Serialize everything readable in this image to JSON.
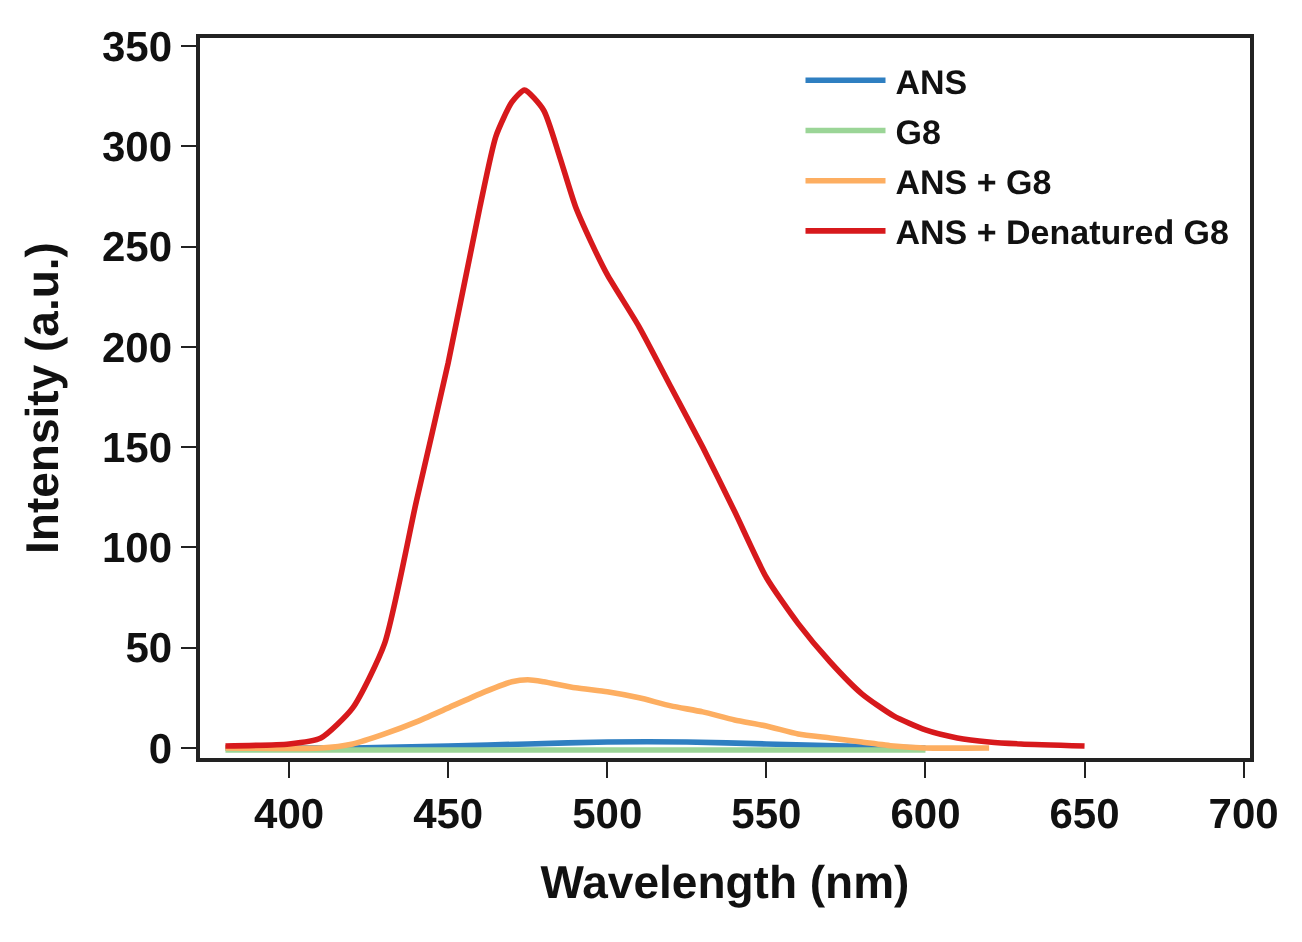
{
  "chart_data": {
    "type": "line",
    "xlabel": "Wavelength (nm)",
    "ylabel": "Intensity (a.u.)",
    "xlim": [
      372,
      702
    ],
    "ylim": [
      -5,
      354
    ],
    "xticks": [
      400,
      450,
      500,
      550,
      600,
      650,
      700
    ],
    "yticks": [
      0,
      50,
      100,
      150,
      200,
      250,
      300,
      350
    ],
    "legend": "top right",
    "marker": "none",
    "line_style": "solid",
    "series": [
      {
        "name": "ANS",
        "color": "#2f7fc1",
        "x": [
          380,
          420,
          450,
          475,
          500,
          525,
          550,
          575,
          600
        ],
        "values": [
          0,
          0,
          1,
          2,
          3,
          3,
          2,
          1,
          0
        ]
      },
      {
        "name": "G8",
        "color": "#9bd597",
        "x": [
          380,
          420,
          450,
          500,
          550,
          600
        ],
        "values": [
          -1,
          -1,
          -1,
          -1,
          -1,
          -1
        ]
      },
      {
        "name": "ANS + G8",
        "color": "#fdae61",
        "x": [
          380,
          410,
          420,
          430,
          440,
          450,
          460,
          470,
          475,
          480,
          490,
          500,
          510,
          520,
          530,
          540,
          550,
          560,
          570,
          580,
          590,
          600,
          620
        ],
        "values": [
          0,
          0,
          2,
          7,
          13,
          20,
          27,
          33,
          34,
          33,
          30,
          28,
          25,
          21,
          18,
          14,
          11,
          7,
          5,
          3,
          1,
          0,
          0
        ]
      },
      {
        "name": "ANS + Denatured G8",
        "color": "#d7191c",
        "x": [
          380,
          400,
          410,
          420,
          430,
          440,
          450,
          460,
          465,
          470,
          474,
          480,
          485,
          490,
          495,
          500,
          510,
          520,
          530,
          540,
          550,
          560,
          570,
          580,
          590,
          600,
          610,
          620,
          630,
          650
        ],
        "values": [
          1,
          2,
          5,
          20,
          52,
          123,
          192,
          270,
          305,
          322,
          328,
          318,
          295,
          270,
          252,
          236,
          210,
          180,
          150,
          118,
          85,
          62,
          43,
          27,
          16,
          9,
          5,
          3,
          2,
          1
        ]
      }
    ]
  }
}
